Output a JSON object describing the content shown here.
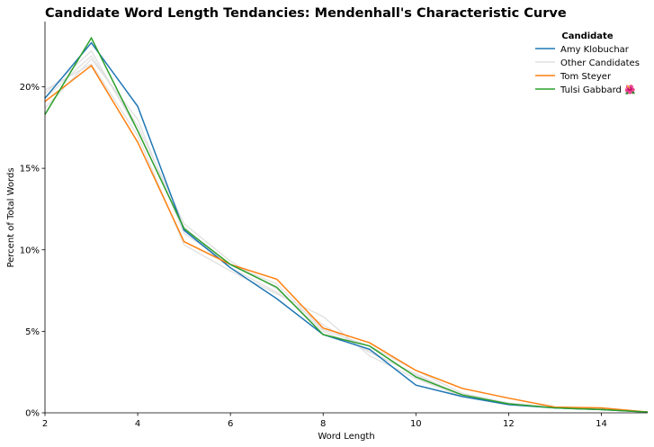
{
  "chart_data": {
    "type": "line",
    "title": "Candidate Word Length Tendancies: Mendenhall's Characteristic Curve",
    "xlabel": "Word Length",
    "ylabel": "Percent of Total Words",
    "xlim": [
      2,
      15
    ],
    "ylim": [
      0,
      24
    ],
    "x": [
      2,
      3,
      4,
      5,
      6,
      7,
      8,
      9,
      10,
      11,
      12,
      13,
      14,
      15
    ],
    "x_ticks": [
      2,
      4,
      6,
      8,
      10,
      12,
      14
    ],
    "x_tick_labels": [
      "2",
      "4",
      "6",
      "8",
      "10",
      "12",
      "14"
    ],
    "y_ticks": [
      0,
      5,
      10,
      15,
      20
    ],
    "y_tick_labels": [
      "0%",
      "5%",
      "10%",
      "15%",
      "20%"
    ],
    "grid": false,
    "legend": {
      "title": "Candidate",
      "placement": "top-right",
      "entries": [
        {
          "label": "Amy Klobuchar",
          "color": "#1f77b4"
        },
        {
          "label": "Other Candidates",
          "color": "#e0e0e0"
        },
        {
          "label": "Tom Steyer",
          "color": "#ff7f0e"
        },
        {
          "label": "Tulsi Gabbard 🌺",
          "color": "#2ca02c"
        }
      ]
    },
    "background_series": [
      {
        "values": [
          19.3,
          21.9,
          17.6,
          11.6,
          9.3,
          7.6,
          5.0,
          3.8,
          2.3,
          1.1,
          0.6,
          0.3,
          0.2,
          0.05
        ]
      },
      {
        "values": [
          19.8,
          21.4,
          17.0,
          10.3,
          8.7,
          7.3,
          5.9,
          3.5,
          2.1,
          1.0,
          0.5,
          0.3,
          0.2,
          0.05
        ]
      },
      {
        "values": [
          18.7,
          21.7,
          18.0,
          11.0,
          9.1,
          7.9,
          5.1,
          4.1,
          2.6,
          1.2,
          0.6,
          0.35,
          0.25,
          0.05
        ]
      },
      {
        "values": [
          19.6,
          22.2,
          17.3,
          11.4,
          8.9,
          7.4,
          5.4,
          3.7,
          2.4,
          1.05,
          0.55,
          0.3,
          0.2,
          0.05
        ]
      }
    ],
    "series": [
      {
        "name": "Amy Klobuchar",
        "color": "#1f77b4",
        "values": [
          19.3,
          22.7,
          18.8,
          11.2,
          8.9,
          7.0,
          4.8,
          3.9,
          1.7,
          1.0,
          0.5,
          0.3,
          0.2,
          0.05
        ]
      },
      {
        "name": "Tom Steyer",
        "color": "#ff7f0e",
        "values": [
          19.1,
          21.3,
          16.6,
          10.5,
          9.1,
          8.2,
          5.2,
          4.3,
          2.6,
          1.5,
          0.9,
          0.35,
          0.3,
          0.05
        ]
      },
      {
        "name": "Tulsi Gabbard 🌺",
        "color": "#2ca02c",
        "values": [
          18.3,
          23.0,
          17.3,
          11.3,
          9.1,
          7.7,
          4.8,
          4.1,
          2.2,
          1.1,
          0.55,
          0.3,
          0.2,
          0.05
        ]
      }
    ]
  }
}
